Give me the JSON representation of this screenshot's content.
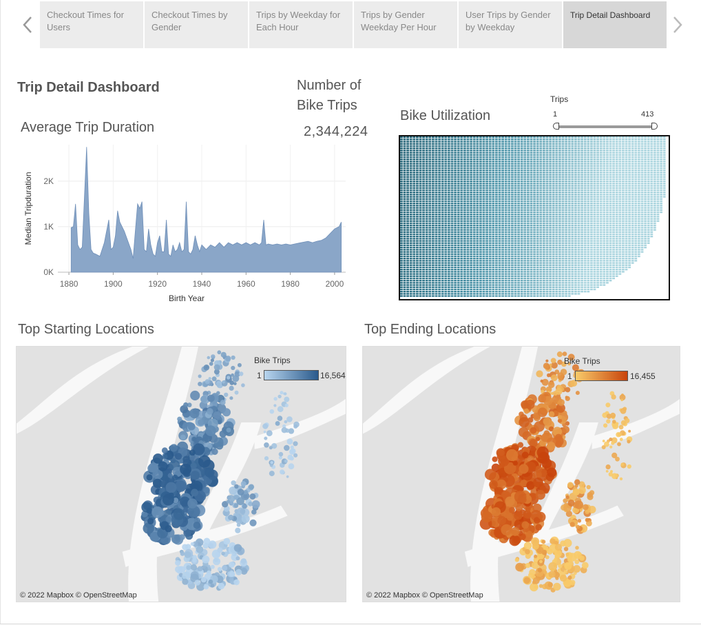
{
  "tabs": [
    {
      "label": "Checkout Times for Users",
      "active": false
    },
    {
      "label": "Checkout Times by Gender",
      "active": false
    },
    {
      "label": "Trips by Weekday for Each Hour",
      "active": false
    },
    {
      "label": "Trips by Gender Weekday Per Hour",
      "active": false
    },
    {
      "label": "User Trips by Gender by Weekday",
      "active": false
    },
    {
      "label": "Trip Detail Dashboard",
      "active": true
    }
  ],
  "nav": {
    "prev_icon": "chevron-left-icon",
    "next_icon": "chevron-right-icon"
  },
  "dashboard": {
    "title": "Trip Detail Dashboard"
  },
  "kpi": {
    "title": "Number of Bike Trips",
    "value": "2,344,224"
  },
  "duration_chart": {
    "title": "Average Trip Duration"
  },
  "utilization": {
    "title": "Bike Utilization",
    "filter_label": "Trips",
    "filter_min": "1",
    "filter_max": "413",
    "colors": [
      "#1f5f73",
      "#4a93a8",
      "#a9d4de"
    ]
  },
  "start_map": {
    "title": "Top Starting Locations",
    "legend_title": "Bike Trips",
    "legend_min": "1",
    "legend_max": "16,564",
    "color_low": "#b8d5ee",
    "color_high": "#2a5a8c",
    "attribution": "© 2022 Mapbox © OpenStreetMap"
  },
  "end_map": {
    "title": "Top Ending Locations",
    "legend_title": "Bike Trips",
    "legend_min": "1",
    "legend_max": "16,455",
    "color_low": "#f8cb6a",
    "color_high": "#c8440c",
    "attribution": "© 2022 Mapbox © OpenStreetMap"
  },
  "chart_data": {
    "type": "area",
    "title": "",
    "xlabel": "Birth Year",
    "ylabel": "Median Tripduration",
    "xlim": [
      1875,
      2005
    ],
    "ylim": [
      0,
      2800
    ],
    "xticks": [
      1880,
      1900,
      1920,
      1940,
      1960,
      1980,
      2000
    ],
    "yticks": [
      0,
      1000,
      2000
    ],
    "ytick_labels": [
      "0K",
      "1K",
      "2K"
    ],
    "color": "#8aa6c8",
    "x": [
      1881,
      1882,
      1883,
      1884,
      1885,
      1886,
      1888,
      1889,
      1890,
      1891,
      1892,
      1894,
      1896,
      1898,
      1899,
      1900,
      1901,
      1902,
      1903,
      1905,
      1908,
      1909,
      1910,
      1911,
      1912,
      1913,
      1914,
      1915,
      1916,
      1917,
      1918,
      1919,
      1920,
      1921,
      1922,
      1923,
      1924,
      1925,
      1926,
      1927,
      1928,
      1929,
      1930,
      1931,
      1932,
      1933,
      1934,
      1935,
      1936,
      1937,
      1938,
      1939,
      1940,
      1942,
      1944,
      1946,
      1948,
      1950,
      1952,
      1954,
      1956,
      1958,
      1960,
      1962,
      1964,
      1966,
      1967,
      1968,
      1969,
      1970,
      1972,
      1974,
      1976,
      1978,
      1980,
      1982,
      1984,
      1986,
      1988,
      1990,
      1992,
      1994,
      1996,
      1998,
      2000,
      2002,
      2003
    ],
    "y": [
      980,
      1000,
      1500,
      600,
      500,
      550,
      2750,
      1300,
      500,
      420,
      400,
      350,
      650,
      1150,
      500,
      550,
      800,
      1350,
      1100,
      900,
      500,
      300,
      900,
      1500,
      1400,
      1550,
      500,
      450,
      950,
      600,
      400,
      350,
      650,
      800,
      450,
      450,
      1150,
      400,
      350,
      600,
      450,
      500,
      650,
      450,
      500,
      1550,
      450,
      400,
      500,
      800,
      600,
      450,
      600,
      500,
      600,
      550,
      650,
      550,
      650,
      600,
      650,
      600,
      650,
      600,
      650,
      600,
      650,
      1150,
      600,
      620,
      600,
      620,
      600,
      620,
      600,
      620,
      640,
      660,
      680,
      650,
      680,
      700,
      750,
      850,
      950,
      1000,
      1100
    ]
  }
}
